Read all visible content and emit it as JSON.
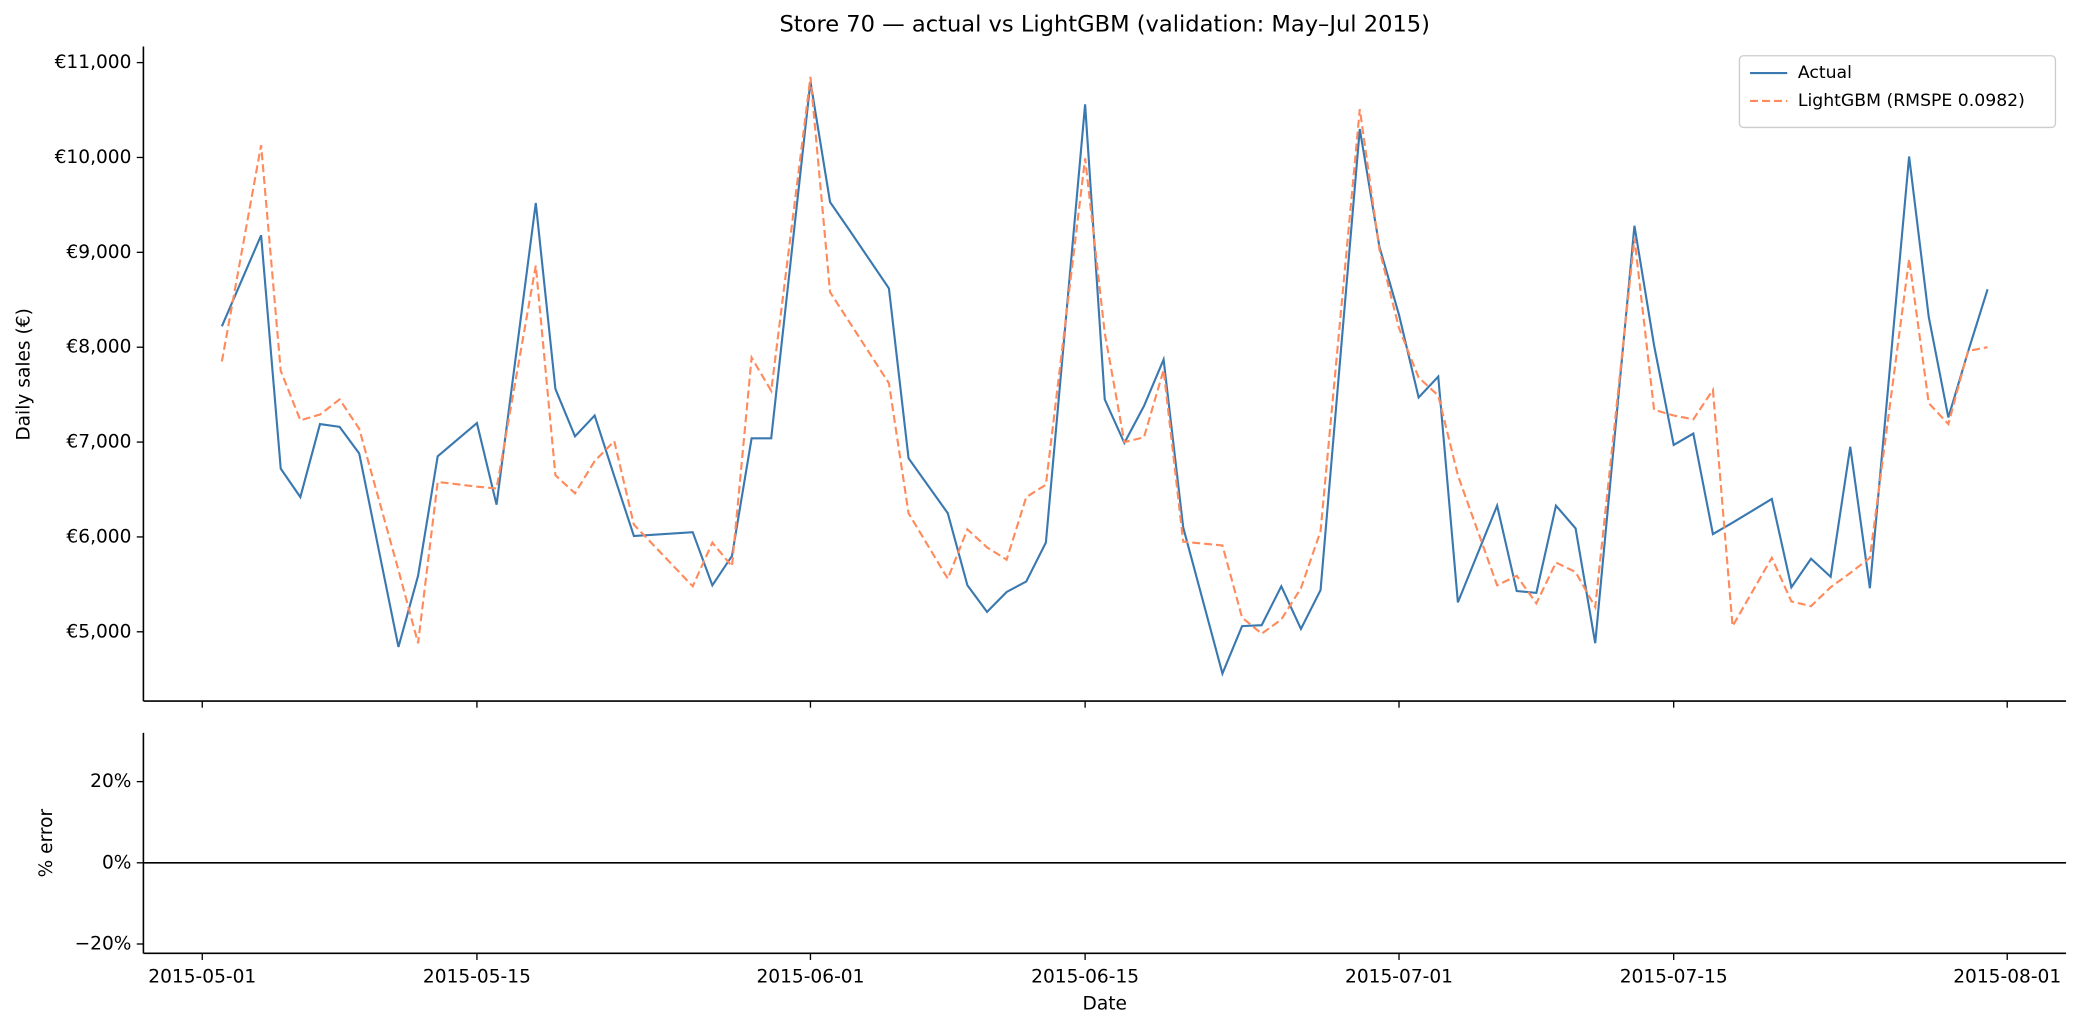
{
  "chart_data": [
    {
      "type": "line",
      "title": "Store 70 — actual vs LightGBM (validation: May–Jul 2015)",
      "ylabel": "Daily sales (€)",
      "x": [
        "2015-05-02",
        "2015-05-04",
        "2015-05-05",
        "2015-05-06",
        "2015-05-07",
        "2015-05-08",
        "2015-05-09",
        "2015-05-11",
        "2015-05-12",
        "2015-05-13",
        "2015-05-15",
        "2015-05-16",
        "2015-05-18",
        "2015-05-19",
        "2015-05-20",
        "2015-05-21",
        "2015-05-22",
        "2015-05-23",
        "2015-05-26",
        "2015-05-27",
        "2015-05-28",
        "2015-05-29",
        "2015-05-30",
        "2015-06-01",
        "2015-06-02",
        "2015-06-03",
        "2015-06-05",
        "2015-06-06",
        "2015-06-08",
        "2015-06-09",
        "2015-06-10",
        "2015-06-11",
        "2015-06-12",
        "2015-06-13",
        "2015-06-15",
        "2015-06-16",
        "2015-06-17",
        "2015-06-18",
        "2015-06-19",
        "2015-06-20",
        "2015-06-22",
        "2015-06-23",
        "2015-06-24",
        "2015-06-25",
        "2015-06-26",
        "2015-06-27",
        "2015-06-29",
        "2015-06-30",
        "2015-07-01",
        "2015-07-02",
        "2015-07-03",
        "2015-07-04",
        "2015-07-06",
        "2015-07-07",
        "2015-07-08",
        "2015-07-09",
        "2015-07-10",
        "2015-07-11",
        "2015-07-13",
        "2015-07-14",
        "2015-07-15",
        "2015-07-16",
        "2015-07-17",
        "2015-07-18",
        "2015-07-20",
        "2015-07-21",
        "2015-07-22",
        "2015-07-23",
        "2015-07-24",
        "2015-07-25",
        "2015-07-27",
        "2015-07-28",
        "2015-07-29",
        "2015-07-30",
        "2015-07-31"
      ],
      "series": [
        {
          "name": "Actual",
          "color": "#3a78b0",
          "linestyle": "solid",
          "values": [
            8220,
            9180,
            6720,
            6420,
            7190,
            7160,
            6880,
            4840,
            5590,
            6850,
            7200,
            6340,
            9520,
            7560,
            7060,
            7280,
            6640,
            6010,
            6050,
            5490,
            5800,
            7040,
            7040,
            10800,
            9530,
            9230,
            8620,
            6830,
            6250,
            5490,
            5210,
            5420,
            5530,
            5940,
            10560,
            7450,
            6990,
            7380,
            7870,
            6100,
            4560,
            5060,
            5070,
            5480,
            5030,
            5440,
            10300,
            9060,
            8340,
            7470,
            7690,
            5310,
            6330,
            5430,
            5410,
            6330,
            6090,
            4880,
            9280,
            8020,
            6970,
            7090,
            6030,
            6150,
            6400,
            5470,
            5770,
            5580,
            6950,
            5460,
            10010,
            8320,
            7260,
            7950,
            8610
          ]
        },
        {
          "name": "LightGBM (RMSPE 0.0982)",
          "color": "#ff8a5c",
          "linestyle": "dashed",
          "values": [
            7850,
            10130,
            7750,
            7230,
            7290,
            7450,
            7140,
            5650,
            4880,
            6580,
            6530,
            6510,
            8860,
            6650,
            6460,
            6800,
            7010,
            6130,
            5480,
            5940,
            5690,
            7890,
            7540,
            10850,
            8580,
            8260,
            7620,
            6250,
            5560,
            6080,
            5890,
            5760,
            6420,
            6550,
            9990,
            8150,
            7000,
            7050,
            7760,
            5950,
            5910,
            5150,
            4980,
            5130,
            5460,
            6060,
            10510,
            9030,
            8200,
            7680,
            7490,
            6650,
            5490,
            5590,
            5300,
            5730,
            5630,
            5260,
            9150,
            7340,
            7280,
            7240,
            7550,
            5060,
            5780,
            5320,
            5270,
            5470,
            5620,
            5780,
            8930,
            7410,
            7190,
            7960,
            8000
          ]
        }
      ],
      "ylim": [
        4270,
        11170
      ],
      "yticks": [
        {
          "value": 5000,
          "label": "€5,000"
        },
        {
          "value": 6000,
          "label": "€6,000"
        },
        {
          "value": 7000,
          "label": "€7,000"
        },
        {
          "value": 8000,
          "label": "€8,000"
        },
        {
          "value": 9000,
          "label": "€9,000"
        },
        {
          "value": 10000,
          "label": "€10,000"
        },
        {
          "value": 11000,
          "label": "€11,000"
        }
      ],
      "legend": "upper right"
    },
    {
      "type": "line",
      "ylabel": "% error",
      "xlabel": "Date",
      "xlim": [
        "2015-04-28",
        "2015-08-04"
      ],
      "xticks": [
        "2015-05-01",
        "2015-05-15",
        "2015-06-01",
        "2015-06-15",
        "2015-07-01",
        "2015-07-15",
        "2015-08-01"
      ],
      "ylim": [
        -22.3,
        32
      ],
      "yticks": [
        {
          "value": -20,
          "label": "−20%"
        },
        {
          "value": 0,
          "label": "0%"
        },
        {
          "value": 20,
          "label": "20%"
        }
      ],
      "hline": 0
    }
  ]
}
